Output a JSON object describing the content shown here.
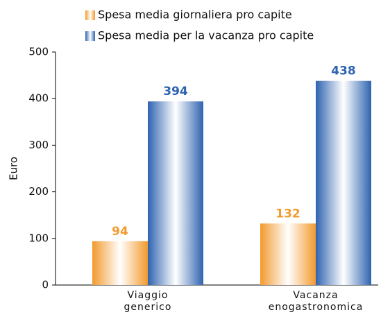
{
  "chart_data": {
    "type": "bar",
    "categories": [
      "Viaggio generico",
      "Vacanza enogastronomica"
    ],
    "y_label": "Euro",
    "series": [
      {
        "name": "Spesa media giornaliera pro capite",
        "color": "#f39a2e",
        "values": [
          94,
          132
        ]
      },
      {
        "name": "Spesa media per la vacanza pro capite",
        "color": "#2e63b0",
        "values": [
          394,
          438
        ]
      }
    ],
    "ylim": [
      0,
      500
    ],
    "yticks": [
      0,
      100,
      200,
      300,
      400,
      500
    ],
    "grid": false
  }
}
